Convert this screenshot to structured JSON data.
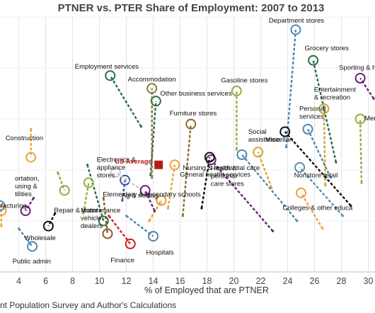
{
  "chart_data": {
    "type": "scatter",
    "title": "PTNER vs. PTER Share of Employment: 2007 to 2013",
    "xlabel": "% of Employed that are PTNER",
    "ylabel": "",
    "xlim": [
      2.6,
      30.5
    ],
    "ylim": [
      0,
      100
    ],
    "xticks": [
      "4",
      "6",
      "8",
      "10",
      "12",
      "14",
      "16",
      "18",
      "20",
      "22",
      "24",
      "26",
      "28",
      "30"
    ],
    "grid": true,
    "source": "nt Population Survey and Author's Calculations",
    "series": [
      {
        "label": "Department stores",
        "color": "#4f86b2",
        "x0": 23.9,
        "y0": 49,
        "x1": 24.6,
        "y1": 95
      },
      {
        "label": "Grocery stores",
        "color": "#2a6e45",
        "x0": 27.6,
        "y0": 43,
        "x1": 25.9,
        "y1": 83
      },
      {
        "label": "Sporting & hobb",
        "color": "#6a1f7a",
        "x0": 30.4,
        "y0": 68,
        "x1": 29.4,
        "y1": 76
      },
      {
        "label": "Entertainment & recreation",
        "color": "#c8a23a",
        "x0": 26.8,
        "y0": 34,
        "x1": 26.7,
        "y1": 64
      },
      {
        "label": "Personal services",
        "color": "#4f86b2",
        "x0": 27.2,
        "y0": 37,
        "x1": 25.5,
        "y1": 56
      },
      {
        "label": "Mem",
        "color": "#98aa3c",
        "x0": 29.5,
        "y0": 35,
        "x1": 29.4,
        "y1": 60
      },
      {
        "label": "Miscellan",
        "color": "#111111",
        "x0": 28.7,
        "y0": 26,
        "x1": 23.8,
        "y1": 55
      },
      {
        "label": "Nonstore retail",
        "color": "#5a8fa8",
        "x0": 28.1,
        "y0": 22,
        "x1": 24.9,
        "y1": 41
      },
      {
        "label": "Colleges & other educa",
        "color": "#e8a23c",
        "x0": 26.6,
        "y0": 17,
        "x1": 25.0,
        "y1": 31
      },
      {
        "label": "Social assistance",
        "color": "#d4a62a",
        "x0": 22.8,
        "y0": 33,
        "x1": 21.8,
        "y1": 47
      },
      {
        "label": "Health & personal care stores",
        "color": "#4f86b2",
        "x0": 24.7,
        "y0": 20,
        "x1": 20.6,
        "y1": 46
      },
      {
        "label": "Gasoline stores",
        "color": "#98aa3c",
        "x0": 20.2,
        "y0": 48,
        "x1": 20.2,
        "y1": 71
      },
      {
        "label": "General health services",
        "color": "#6a1f7a",
        "x0": 22.9,
        "y0": 16,
        "x1": 18.3,
        "y1": 44
      },
      {
        "label": "Nursing & residential care",
        "color": "#111111",
        "x0": 17.6,
        "y0": 25,
        "x1": 18.2,
        "y1": 45
      },
      {
        "label": "Furniture stores",
        "color": "#8a6a2a",
        "x0": 16.2,
        "y0": 22,
        "x1": 16.8,
        "y1": 58
      },
      {
        "label": "Other business services",
        "color": "#2a6e45",
        "x0": 13.8,
        "y0": 38,
        "x1": 14.2,
        "y1": 67
      },
      {
        "label": "Accommodation",
        "color": "#8a7a3a",
        "x0": 13.9,
        "y0": 37,
        "x1": 13.9,
        "y1": 72
      },
      {
        "label": "Employment services",
        "color": "#2a6e45",
        "x0": 13.1,
        "y0": 57,
        "x1": 10.8,
        "y1": 77
      },
      {
        "label": "Electronics & appliance stores",
        "color": "#3f4fa8",
        "x0": 11.7,
        "y0": 28,
        "x1": 11.9,
        "y1": 36
      },
      {
        "label": "Elementary & secondary schools",
        "color": "#cccccc",
        "x0": 14.6,
        "y0": 27,
        "x1": 11.2,
        "y1": 39
      },
      {
        "label": "Ag & mining",
        "color": "#e89a2a",
        "x0": 13.7,
        "y0": 20,
        "x1": 14.6,
        "y1": 28
      },
      {
        "label": "Hospitals",
        "color": "#4f86b2",
        "x0": 12.0,
        "y0": 22,
        "x1": 14.0,
        "y1": 14
      },
      {
        "label": "Finance",
        "color": "#cc1f1f",
        "x0": 10.7,
        "y0": 22,
        "x1": 12.3,
        "y1": 11
      },
      {
        "label": "Motor vehicle dealers",
        "color": "#8a5a2a",
        "x0": 10.3,
        "y0": 29,
        "x1": 10.6,
        "y1": 15
      },
      {
        "label": "Repair & maintenance",
        "color": "#2a6e45",
        "x0": 9.1,
        "y0": 42,
        "x1": 10.3,
        "y1": 20
      },
      {
        "label": "Wholesale",
        "color": "#111111",
        "x0": 6.7,
        "y0": 23,
        "x1": 6.2,
        "y1": 18
      },
      {
        "label": "Public admin",
        "color": "#4f86b2",
        "x0": 4.0,
        "y0": 17,
        "x1": 5.0,
        "y1": 10
      },
      {
        "label": "Construction",
        "color": "#e8a23c",
        "x0": 4.9,
        "y0": 56,
        "x1": 4.9,
        "y1": 45
      },
      {
        "label": "ortation, using & tilities",
        "color": "#98aa3c",
        "x0": 6.9,
        "y0": 39,
        "x1": 7.4,
        "y1": 32
      },
      {
        "label": "nanufacturing",
        "color": "#6a1f7a",
        "x0": 5.1,
        "y0": 29,
        "x1": 4.5,
        "y1": 24
      },
      {
        "label": "ng",
        "color": "#4f86b2",
        "x0": 2.5,
        "y0": 20,
        "x1": 2.6,
        "y1": 26
      },
      {
        "label": "",
        "color": "#e8a23c",
        "x0": 2.7,
        "y0": 18,
        "x1": 2.7,
        "y1": 24
      },
      {
        "label": "",
        "color": "#98aa3c",
        "x0": 8.8,
        "y0": 23,
        "x1": 9.2,
        "y1": 35
      },
      {
        "label": "",
        "color": "#6a1f7a",
        "x0": 14.1,
        "y0": 24,
        "x1": 13.4,
        "y1": 32
      },
      {
        "label": "",
        "color": "#e8a23c",
        "x0": 15.1,
        "y0": 25,
        "x1": 15.6,
        "y1": 42
      }
    ],
    "us_average": {
      "label": "US Average",
      "x": 14.4,
      "y": 42,
      "color": "#b31b1b"
    }
  }
}
